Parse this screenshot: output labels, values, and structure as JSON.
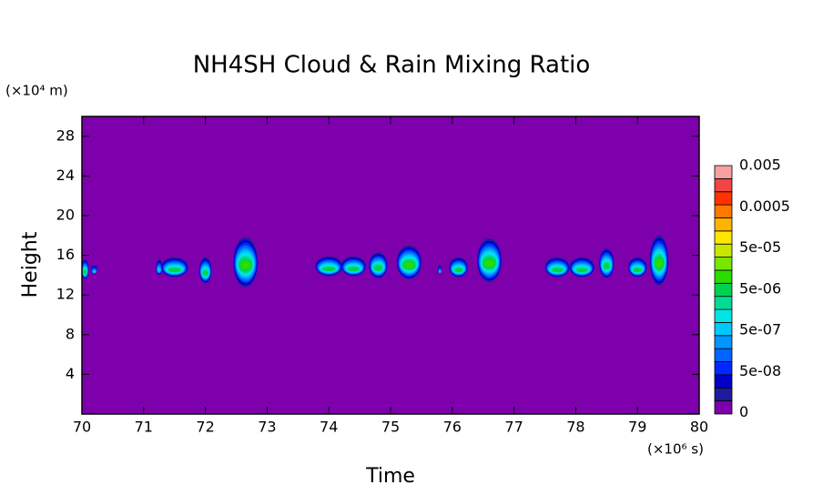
{
  "chart_data": {
    "type": "contour",
    "title": "NH4SH Cloud & Rain Mixing Ratio",
    "x_label": "Time",
    "y_label": "Height",
    "x_unit": "(×10⁶ s)",
    "y_unit": "(×10⁴ m)",
    "xlim": [
      70,
      80
    ],
    "ylim": [
      0,
      30
    ],
    "xticks": [
      70,
      71,
      72,
      73,
      74,
      75,
      76,
      77,
      78,
      79,
      80
    ],
    "yticks": [
      4,
      8,
      12,
      16,
      20,
      24,
      28
    ],
    "levels": [
      0,
      1e-08,
      2.5e-08,
      5e-08,
      1e-07,
      2.5e-07,
      5e-07,
      1e-06,
      2.5e-06,
      5e-06,
      1e-05,
      2.5e-05,
      5e-05,
      0.0001,
      0.00025,
      0.0005,
      0.001,
      0.0025,
      0.005,
      0.01
    ],
    "colors": [
      "#7d00ac",
      "#1c1c9c",
      "#0000c8",
      "#0028ff",
      "#0064ff",
      "#0096ff",
      "#00c8ff",
      "#00e6e6",
      "#00dc96",
      "#00d250",
      "#28dc00",
      "#78e600",
      "#c8e600",
      "#ffe600",
      "#ffb400",
      "#ff7800",
      "#ff3200",
      "#f04646",
      "#f8a0a0"
    ],
    "colorbar_ticks": [
      0,
      {
        "value": 5e-08,
        "label": "5e-08"
      },
      {
        "value": 5e-07,
        "label": "5e-07"
      },
      {
        "value": 5e-06,
        "label": "5e-06"
      },
      {
        "value": 5e-05,
        "label": "5e-05"
      },
      0.0005,
      0.005
    ],
    "cells": [
      {
        "x": 70.05,
        "y": 14.6,
        "dx": 0.06,
        "dy": 1.0,
        "z": 5e-06
      },
      {
        "x": 70.2,
        "y": 14.6,
        "dx": 0.05,
        "dy": 0.4,
        "z": 5e-07
      },
      {
        "x": 71.25,
        "y": 14.8,
        "dx": 0.05,
        "dy": 0.8,
        "z": 5e-07
      },
      {
        "x": 71.5,
        "y": 14.8,
        "dx": 0.22,
        "dy": 1.0,
        "z": 5e-06
      },
      {
        "x": 72.0,
        "y": 14.5,
        "dx": 0.1,
        "dy": 1.3,
        "z": 5e-06
      },
      {
        "x": 72.65,
        "y": 15.3,
        "dx": 0.2,
        "dy": 2.5,
        "z": 1e-05
      },
      {
        "x": 74.0,
        "y": 14.9,
        "dx": 0.22,
        "dy": 1.0,
        "z": 5e-06
      },
      {
        "x": 74.4,
        "y": 14.9,
        "dx": 0.2,
        "dy": 1.0,
        "z": 5e-06
      },
      {
        "x": 74.8,
        "y": 15.0,
        "dx": 0.15,
        "dy": 1.3,
        "z": 5e-06
      },
      {
        "x": 75.3,
        "y": 15.3,
        "dx": 0.2,
        "dy": 1.7,
        "z": 1e-05
      },
      {
        "x": 75.8,
        "y": 14.6,
        "dx": 0.03,
        "dy": 0.4,
        "z": 5e-07
      },
      {
        "x": 76.1,
        "y": 14.8,
        "dx": 0.15,
        "dy": 1.0,
        "z": 5e-06
      },
      {
        "x": 76.6,
        "y": 15.5,
        "dx": 0.2,
        "dy": 2.2,
        "z": 1e-05
      },
      {
        "x": 77.7,
        "y": 14.8,
        "dx": 0.2,
        "dy": 1.0,
        "z": 5e-06
      },
      {
        "x": 78.1,
        "y": 14.8,
        "dx": 0.2,
        "dy": 1.0,
        "z": 5e-06
      },
      {
        "x": 78.5,
        "y": 15.2,
        "dx": 0.12,
        "dy": 1.5,
        "z": 5e-06
      },
      {
        "x": 79.0,
        "y": 14.8,
        "dx": 0.15,
        "dy": 1.0,
        "z": 5e-06
      },
      {
        "x": 79.35,
        "y": 15.5,
        "dx": 0.15,
        "dy": 2.5,
        "z": 1e-05
      }
    ]
  }
}
